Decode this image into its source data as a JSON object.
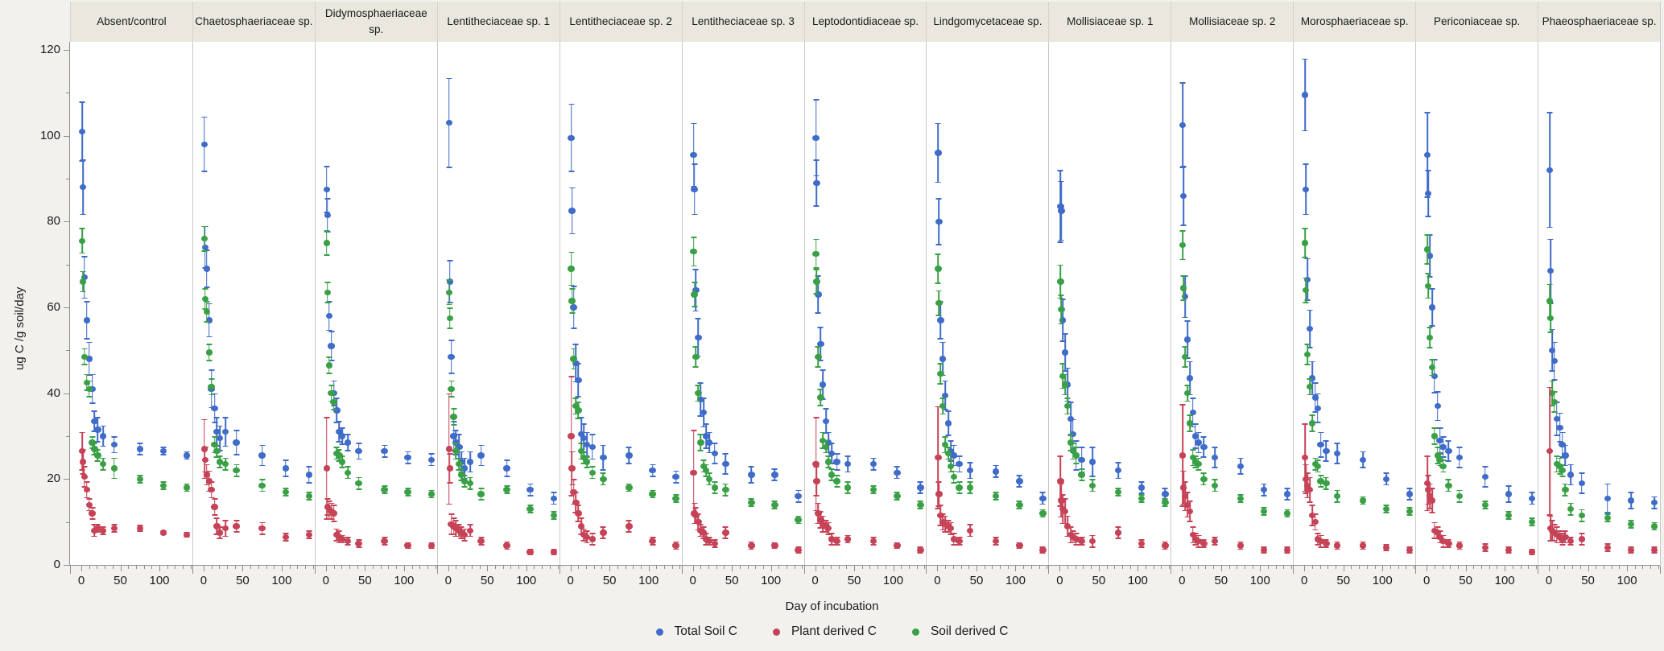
{
  "chart_data": {
    "type": "scatter",
    "title": "",
    "xlabel": "Day of incubation",
    "ylabel": "ug C /g soil/day",
    "ylim": [
      0,
      120
    ],
    "yticks": [
      0,
      20,
      40,
      60,
      80,
      100,
      120
    ],
    "y_minor_step": 10,
    "xticks_per_panel": [
      0,
      50,
      100
    ],
    "x_minor_step": 10,
    "x_range_per_panel": [
      0,
      140
    ],
    "grid": false,
    "legend_position": "bottom-center",
    "days": [
      1,
      2,
      4,
      7,
      10,
      14,
      17,
      21,
      28,
      42,
      75,
      105,
      135
    ],
    "series_names": [
      "Total Soil C",
      "Plant derived C",
      "Soil derived C"
    ],
    "colors": {
      "total": "#3f6bc9",
      "plant": "#c64257",
      "soil": "#3aa046"
    },
    "panels": [
      {
        "label": "Absent/control",
        "total": [
          101,
          88,
          67,
          57,
          48,
          41,
          33.5,
          31.5,
          30,
          28,
          27,
          26.5,
          25.5
        ],
        "total_err": [
          7,
          6.5,
          5,
          4.5,
          4,
          3.5,
          2.5,
          3,
          2.5,
          2,
          1.5,
          1,
          1
        ],
        "plant": [
          26.5,
          24,
          20.5,
          17.5,
          14,
          12,
          8,
          8.5,
          8,
          8.5,
          8.5,
          7.5,
          7
        ],
        "plant_err": [
          4.5,
          3,
          2.5,
          2,
          1.5,
          1.5,
          1.5,
          1,
          1,
          1,
          0.8,
          0.6,
          0.6
        ],
        "soil": [
          75.5,
          66,
          48.5,
          42.5,
          41,
          28.5,
          27,
          25.5,
          23.5,
          22.5,
          20,
          18.5,
          18
        ],
        "soil_err": [
          3,
          2.5,
          2,
          2,
          2,
          1.5,
          1.5,
          1.5,
          1.5,
          2.5,
          1,
          1,
          1
        ]
      },
      {
        "label": "Chaetosphaeriaceae sp.",
        "total": [
          98,
          74,
          69,
          57,
          41,
          36.5,
          31,
          29.5,
          31,
          28.5,
          25.5,
          22.5,
          21
        ],
        "total_err": [
          6.5,
          5,
          4.5,
          4,
          4.5,
          3.5,
          3.5,
          3,
          3.5,
          3,
          2.5,
          2,
          2
        ],
        "plant": [
          27,
          24.5,
          21,
          19.5,
          17.5,
          13.5,
          9,
          7.5,
          8.5,
          9,
          8.5,
          6.5,
          7
        ],
        "plant_err": [
          7,
          3,
          2.5,
          2.5,
          2,
          2,
          2,
          1.5,
          2,
          1.5,
          1.5,
          1,
          1
        ],
        "soil": [
          76,
          62,
          59,
          49.5,
          41.5,
          28,
          26.5,
          24,
          23.5,
          22,
          18.5,
          17,
          16
        ],
        "soil_err": [
          3,
          2.5,
          2.5,
          2,
          2,
          2,
          1.5,
          1.5,
          1.5,
          1.5,
          1.5,
          1,
          1
        ]
      },
      {
        "label": "Didymosphaeriaceae sp.",
        "total": [
          87.5,
          81.5,
          58,
          51,
          40,
          36,
          31,
          30,
          28.5,
          26.5,
          26.5,
          25,
          24.5
        ],
        "total_err": [
          5.5,
          4,
          3.5,
          3.5,
          3,
          3,
          2.5,
          2,
          2,
          2,
          1.5,
          1.5,
          1.5
        ],
        "plant": [
          22.5,
          13.5,
          13,
          12.5,
          12,
          7,
          6.5,
          6,
          5.5,
          5,
          5.5,
          4.5,
          4.5
        ],
        "plant_err": [
          12,
          2,
          2,
          2,
          2,
          1.5,
          1.5,
          1,
          1,
          1,
          1,
          0.8,
          0.8
        ],
        "soil": [
          75,
          63.5,
          46.5,
          40,
          38,
          26,
          25.5,
          24,
          21.5,
          19,
          17.5,
          17,
          16.5
        ],
        "soil_err": [
          3,
          2.5,
          2,
          2,
          2,
          1.5,
          1.5,
          1.5,
          1.5,
          1.5,
          1,
          1,
          1
        ]
      },
      {
        "label": "Lentitheciaceae sp. 1",
        "total": [
          103,
          66,
          48.5,
          30,
          28.5,
          27.5,
          24,
          22.5,
          24,
          25.5,
          22.5,
          17.5,
          15.5
        ],
        "total_err": [
          10.5,
          5,
          4,
          3.5,
          3,
          3,
          2.5,
          2.5,
          2.5,
          2.5,
          2,
          1.5,
          1.5
        ],
        "plant": [
          27,
          22.5,
          9.5,
          9,
          8.5,
          8,
          7.5,
          7,
          8,
          5.5,
          4.5,
          3,
          3
        ],
        "plant_err": [
          13,
          3.5,
          2.5,
          2,
          2,
          1.5,
          1.5,
          1.5,
          1.5,
          1,
          1,
          0.8,
          0.8
        ],
        "soil": [
          63.5,
          57.5,
          41,
          34.5,
          26.5,
          23.5,
          21,
          19.5,
          19,
          16.5,
          17.5,
          13,
          11.5
        ],
        "soil_err": [
          3,
          2.5,
          2,
          2,
          2,
          1.5,
          1.5,
          1.5,
          1.5,
          1.5,
          1,
          1,
          1
        ]
      },
      {
        "label": "Lentitheciaceae sp. 2",
        "total": [
          99.5,
          82.5,
          60,
          47,
          43,
          30.5,
          29.5,
          28,
          27.5,
          25,
          25.5,
          22,
          20.5
        ],
        "total_err": [
          8,
          5.5,
          5,
          4.5,
          4,
          4,
          3.5,
          3,
          3,
          3,
          2,
          1.5,
          1.5
        ],
        "plant": [
          30,
          22.5,
          17,
          14.5,
          12,
          9,
          7,
          6.5,
          6,
          7.5,
          9,
          5.5,
          4.5
        ],
        "plant_err": [
          14,
          4,
          3,
          2.5,
          2,
          2,
          1.5,
          1.5,
          1.5,
          1.5,
          1.5,
          1,
          1
        ],
        "soil": [
          69,
          61.5,
          48,
          37,
          36,
          26.5,
          25,
          24,
          21.5,
          20,
          18,
          16.5,
          15.5
        ],
        "soil_err": [
          4,
          3,
          2.5,
          2,
          2,
          2,
          1.5,
          1.5,
          1.5,
          1.5,
          1,
          1,
          1
        ]
      },
      {
        "label": "Lentitheciaceae sp. 3",
        "total": [
          95.5,
          87.5,
          64,
          53,
          38.5,
          35.5,
          30,
          28.5,
          26,
          23.5,
          21,
          21,
          16
        ],
        "total_err": [
          7.5,
          6,
          5,
          4.5,
          4,
          3.5,
          3,
          2.5,
          2.5,
          2.5,
          2,
          1.5,
          1.5
        ],
        "plant": [
          21.5,
          12,
          11.5,
          10,
          8,
          7.5,
          6,
          5.5,
          5,
          7.5,
          4.5,
          4.5,
          3.5
        ],
        "plant_err": [
          10,
          2.5,
          2,
          2,
          1.5,
          1.5,
          1.5,
          1,
          1,
          1.5,
          1,
          0.8,
          0.8
        ],
        "soil": [
          73,
          63,
          48.5,
          40,
          28.5,
          23,
          22,
          20,
          18,
          17.5,
          14.5,
          14,
          10.5
        ],
        "soil_err": [
          3.5,
          3,
          2.5,
          2,
          2,
          1.5,
          1.5,
          1.5,
          1.5,
          1.5,
          1,
          1,
          1
        ]
      },
      {
        "label": "Leptodontidiaceae sp.",
        "total": [
          99.5,
          89,
          63,
          51.5,
          42,
          33.5,
          28.5,
          26,
          24,
          23.5,
          23.5,
          21.5,
          18
        ],
        "total_err": [
          9,
          5.5,
          4.5,
          4,
          3.5,
          3,
          2.5,
          2.5,
          2,
          2,
          1.5,
          1.5,
          1.5
        ],
        "plant": [
          23.5,
          19.5,
          12,
          10.5,
          9.5,
          9,
          8.5,
          6,
          5.5,
          6,
          5.5,
          4.5,
          3.5
        ],
        "plant_err": [
          11,
          3.5,
          2.5,
          2,
          2,
          1.5,
          1.5,
          1.5,
          1,
          1,
          1,
          0.8,
          0.8
        ],
        "soil": [
          72.5,
          66,
          48.5,
          39,
          29,
          27.5,
          24,
          21,
          19.5,
          18,
          17.5,
          16,
          14
        ],
        "soil_err": [
          3.5,
          3,
          2.5,
          2,
          2,
          1.5,
          1.5,
          1.5,
          1.5,
          1.5,
          1,
          1,
          1
        ]
      },
      {
        "label": "Lindgomycetaceae sp.",
        "total": [
          96,
          80,
          57,
          48,
          39.5,
          33,
          26.5,
          25.5,
          23.5,
          22,
          21.8,
          19.5,
          15.5
        ],
        "total_err": [
          7,
          5.5,
          4.5,
          4,
          3.5,
          3,
          2.5,
          2.5,
          2,
          2,
          1.5,
          1.5,
          1.5
        ],
        "plant": [
          25,
          16.5,
          11.5,
          10,
          9.5,
          9,
          8.5,
          6,
          5.5,
          8,
          5.5,
          4.5,
          3.5
        ],
        "plant_err": [
          12,
          3,
          2.5,
          2,
          2,
          1.5,
          1.5,
          1.5,
          1,
          1.5,
          1,
          0.8,
          0.8
        ],
        "soil": [
          69,
          61,
          44.5,
          37,
          28,
          26,
          23,
          20.5,
          18,
          18,
          16,
          14,
          12
        ],
        "soil_err": [
          3.5,
          3,
          2.5,
          2,
          2,
          1.5,
          1.5,
          1.5,
          1.5,
          1.5,
          1,
          1,
          1
        ]
      },
      {
        "label": "Mollisiaceae sp. 1",
        "total": [
          83.5,
          82.5,
          57,
          49.5,
          42,
          34,
          30.5,
          25.5,
          24.5,
          24,
          22,
          18,
          16.5
        ],
        "total_err": [
          8.5,
          7,
          5,
          4.5,
          4,
          4,
          3.5,
          3.5,
          3,
          3.5,
          2,
          1.5,
          1.5
        ],
        "plant": [
          19.5,
          15,
          13,
          12.5,
          9,
          7,
          6.5,
          6,
          5.5,
          5.5,
          7.5,
          5,
          4.5
        ],
        "plant_err": [
          6,
          4,
          3.5,
          3,
          2.5,
          2,
          1.5,
          1.5,
          1,
          1.5,
          1.5,
          1,
          1
        ],
        "soil": [
          66,
          59.5,
          44,
          42,
          37,
          28.5,
          26.5,
          25.5,
          21,
          18.5,
          17,
          15.5,
          14.5
        ],
        "soil_err": [
          4,
          3.5,
          3,
          2.5,
          2,
          2,
          2,
          2,
          1.5,
          1.5,
          1,
          1,
          1
        ]
      },
      {
        "label": "Mollisiaceae sp. 2",
        "total": [
          102.5,
          86,
          62.5,
          52.5,
          43.5,
          35.5,
          30,
          28.5,
          27.5,
          25,
          23,
          17.5,
          16.5
        ],
        "total_err": [
          10,
          7,
          5,
          4.5,
          4,
          3.5,
          3,
          2.5,
          2.5,
          2.5,
          2,
          1.5,
          1.5
        ],
        "plant": [
          25.5,
          18,
          16,
          14,
          12.5,
          7,
          6,
          5.5,
          5,
          5.5,
          4.5,
          3.5,
          3.5
        ],
        "plant_err": [
          12,
          4,
          3.5,
          3,
          2.5,
          2,
          1.5,
          1.5,
          1,
          1,
          1,
          0.8,
          0.8
        ],
        "soil": [
          74.5,
          64.5,
          48.5,
          40,
          33,
          25,
          24,
          23.5,
          20,
          18.5,
          15.5,
          12.5,
          12
        ],
        "soil_err": [
          3.5,
          3,
          2.5,
          2,
          2,
          2,
          1.5,
          1.5,
          1.5,
          1.5,
          1,
          1,
          1
        ]
      },
      {
        "label": "Morosphaeriaceae sp.",
        "total": [
          109.5,
          87.5,
          66.5,
          55,
          43.5,
          39,
          36.5,
          28,
          26.5,
          26,
          24.5,
          20,
          16.5
        ],
        "total_err": [
          8.5,
          6,
          5,
          4.5,
          4,
          3.5,
          3.5,
          3,
          2.5,
          2.5,
          2,
          1.5,
          1.5
        ],
        "plant": [
          25,
          20,
          18.5,
          17.5,
          11.5,
          10,
          6,
          5.5,
          5,
          4.5,
          4.5,
          4,
          3.5
        ],
        "plant_err": [
          8,
          3.5,
          3,
          3,
          2.5,
          2,
          1.5,
          1.5,
          1,
          1,
          1,
          0.8,
          0.8
        ],
        "soil": [
          75,
          64,
          49,
          41.5,
          33,
          23.5,
          23,
          19.5,
          19,
          16,
          15,
          13,
          12.5
        ],
        "soil_err": [
          3.5,
          3,
          2.5,
          2,
          2,
          1.5,
          1.5,
          1.5,
          1.5,
          1.5,
          1,
          1,
          1
        ]
      },
      {
        "label": "Periconiaceae sp.",
        "total": [
          95.5,
          86.5,
          72,
          60,
          44,
          37,
          29,
          27.5,
          26.5,
          25,
          20.5,
          16.5,
          15.5
        ],
        "total_err": [
          10,
          5.5,
          5,
          4.5,
          4,
          3.5,
          3,
          2.5,
          2.5,
          2.5,
          2.5,
          2,
          1.5
        ],
        "plant": [
          19,
          17.5,
          16,
          15,
          8,
          7.5,
          6.5,
          5.5,
          5,
          4.5,
          4,
          3.5,
          3
        ],
        "plant_err": [
          6.5,
          3.5,
          3,
          3,
          2,
          1.5,
          1.5,
          1.5,
          1,
          1,
          1,
          0.8,
          0.8
        ],
        "soil": [
          73.5,
          65,
          53,
          46,
          30,
          25.5,
          24.5,
          23,
          18.5,
          16,
          14,
          11.5,
          10
        ],
        "soil_err": [
          3.5,
          3,
          2.5,
          2,
          2,
          2,
          1.5,
          1.5,
          1.5,
          1.5,
          1,
          1,
          1
        ]
      },
      {
        "label": "Phaeosphaeriaceae sp.",
        "total": [
          92,
          68.5,
          50,
          47.5,
          34,
          32,
          28,
          25.5,
          21,
          19,
          15.5,
          15,
          14.5
        ],
        "total_err": [
          13.5,
          7.5,
          5,
          4.5,
          4,
          3.5,
          3,
          2.5,
          2.5,
          2.5,
          3.5,
          2,
          1.5
        ],
        "plant": [
          26.5,
          8.5,
          8,
          7.5,
          7,
          6.5,
          6,
          6.5,
          5.5,
          6,
          4,
          3.5,
          3.5
        ],
        "plant_err": [
          15,
          3,
          2.5,
          2,
          2,
          1.5,
          1.5,
          1.5,
          1,
          1.5,
          1,
          0.8,
          0.8
        ],
        "soil": [
          61.5,
          57.5,
          40,
          38,
          23.5,
          23,
          22,
          17.5,
          13,
          11.5,
          11,
          9.5,
          9
        ],
        "soil_err": [
          4,
          3.5,
          3,
          2.5,
          2,
          2,
          1.5,
          1.5,
          1.5,
          1.5,
          1,
          1,
          1
        ]
      }
    ]
  },
  "legend": {
    "items": [
      {
        "label": "Total Soil C",
        "color": "#3f6bc9"
      },
      {
        "label": "Plant derived C",
        "color": "#c64257"
      },
      {
        "label": "Soil derived C",
        "color": "#3aa046"
      }
    ]
  }
}
